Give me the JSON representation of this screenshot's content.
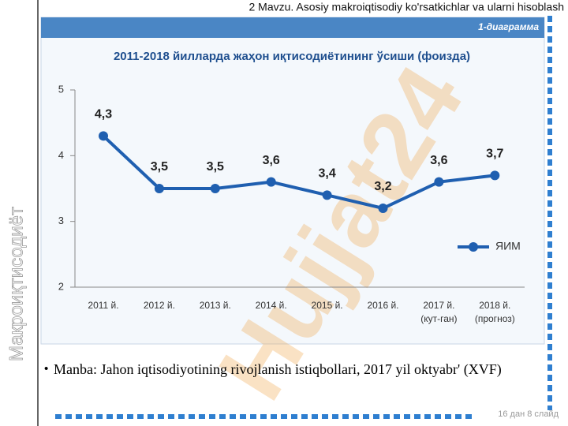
{
  "header": "2 Mavzu. Asosiy makroiqtisodiy  ko'rsatkichlar va ularni hisoblash",
  "side_title": "Макроиқтисодиёт",
  "watermark": "Hujjat24",
  "diagram_label": "1-диаграмма",
  "chart_data": {
    "type": "line",
    "title": "2011-2018 йилларда жаҳон иқтисодиётининг ўсиши (фоизда)",
    "categories": [
      "2011 й.",
      "2012 й.",
      "2013 й.",
      "2014 й.",
      "2015 й.",
      "2016 й.",
      "2017 й.\n(кут-ган)",
      "2018 й.\n(прогноз)"
    ],
    "series": [
      {
        "name": "ЯИМ",
        "color": "#1f5fb0",
        "values": [
          4.3,
          3.5,
          3.5,
          3.6,
          3.4,
          3.2,
          3.6,
          3.7
        ],
        "value_labels": [
          "4,3",
          "3,5",
          "3,5",
          "3,6",
          "3,4",
          "3,2",
          "3,6",
          "3,7"
        ]
      }
    ],
    "ylim": [
      2,
      5
    ],
    "yticks": [
      2,
      3,
      4,
      5
    ],
    "legend": "right"
  },
  "source": "Manba: Jahon iqtisodiyotining rivojlanish istiqbollari, 2017 yil oktyabr' (XVF)",
  "footer": "16 дан 8 слайд"
}
